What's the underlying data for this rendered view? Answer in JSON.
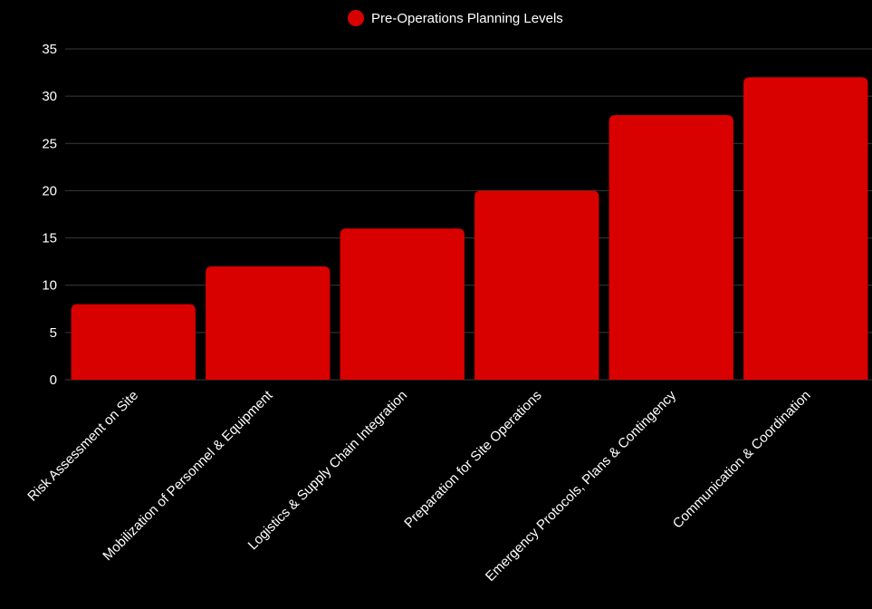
{
  "chart_data": {
    "type": "bar",
    "legend": {
      "position": "top-center",
      "entries": [
        "Pre-Operations Planning Levels"
      ]
    },
    "series": [
      {
        "name": "Pre-Operations Planning Levels",
        "color": "#d90000",
        "values": [
          8,
          12,
          16,
          20,
          28,
          32
        ]
      }
    ],
    "categories": [
      "Risk Assessment on Site",
      "Mobilization of Personnel & Equipment",
      "Logistics & Supply Chain Integration",
      "Preparation for Site Operations",
      "Emergency Protocols, Plans & Contingency",
      "Communication & Coordination"
    ],
    "ylim": [
      0,
      35
    ],
    "yticks": [
      "0",
      "5",
      "10",
      "15",
      "20",
      "25",
      "30",
      "35"
    ],
    "grid": true,
    "background": "#000000",
    "gridline_color": "#3a3a3a",
    "text_color": "#ffffff"
  }
}
